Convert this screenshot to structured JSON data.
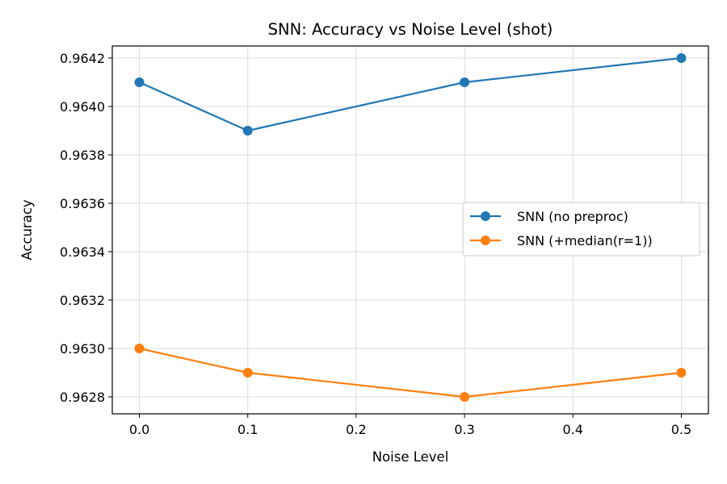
{
  "chart_data": {
    "type": "line",
    "title": "SNN: Accuracy vs Noise Level (shot)",
    "xlabel": "Noise Level",
    "ylabel": "Accuracy",
    "x": [
      0.0,
      0.1,
      0.3,
      0.5
    ],
    "xlim": [
      -0.025,
      0.525
    ],
    "ylim": [
      0.96273,
      0.96425
    ],
    "xticks": [
      0.0,
      0.1,
      0.2,
      0.3,
      0.4,
      0.5
    ],
    "xtick_labels": [
      "0.0",
      "0.1",
      "0.2",
      "0.3",
      "0.4",
      "0.5"
    ],
    "yticks": [
      0.9628,
      0.963,
      0.9632,
      0.9634,
      0.9636,
      0.9638,
      0.964,
      0.9642
    ],
    "ytick_labels": [
      "0.9628",
      "0.9630",
      "0.9632",
      "0.9634",
      "0.9636",
      "0.9638",
      "0.9640",
      "0.9642"
    ],
    "grid": true,
    "legend_position": "center-right",
    "series": [
      {
        "name": "SNN (no preproc)",
        "color": "#1f77b4",
        "values": [
          0.9641,
          0.9639,
          0.9641,
          0.9642
        ]
      },
      {
        "name": "SNN (+median(r=1))",
        "color": "#ff7f0e",
        "values": [
          0.963,
          0.9629,
          0.9628,
          0.9629
        ]
      }
    ]
  }
}
